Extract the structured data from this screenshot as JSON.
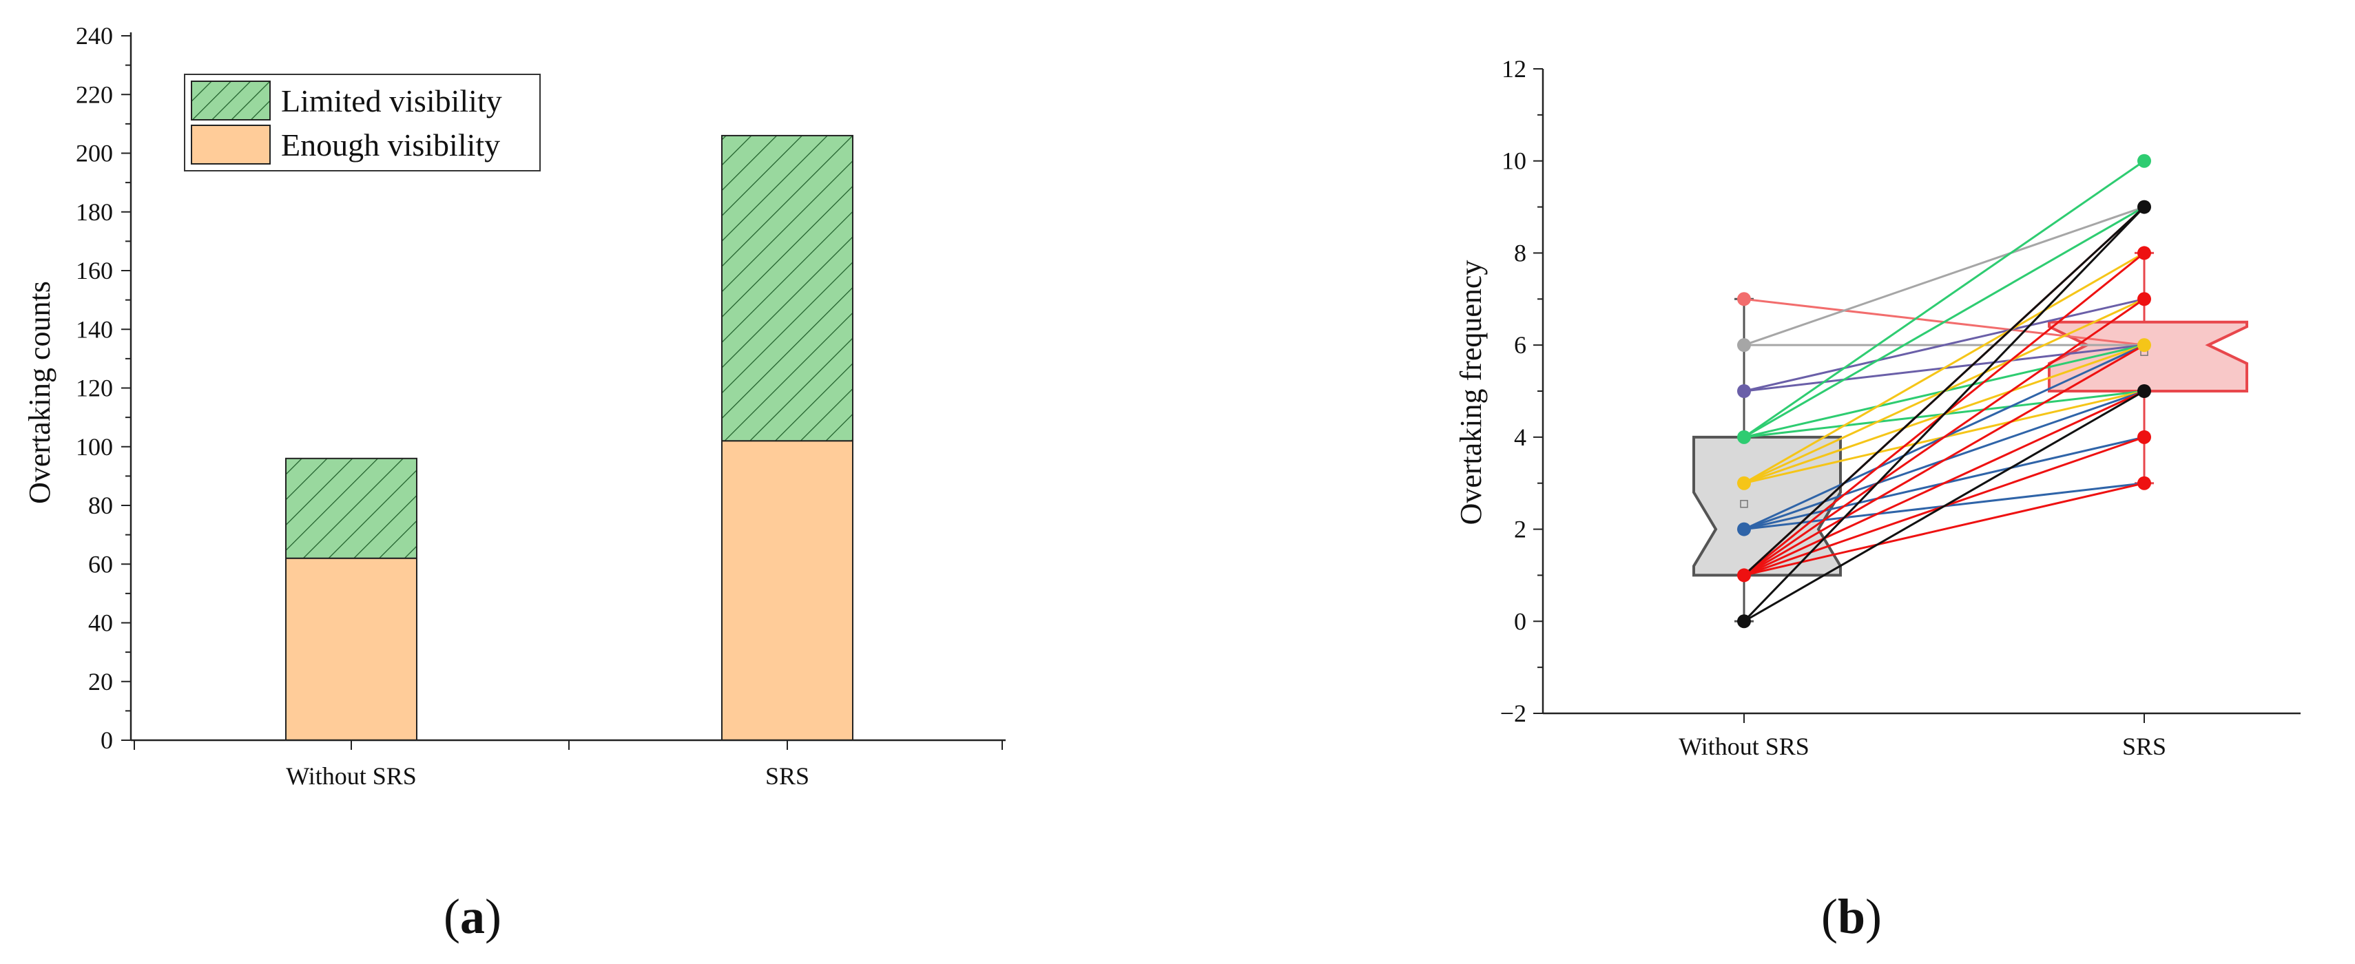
{
  "chart_data": [
    {
      "panel": "(a)",
      "type": "bar",
      "stacked": true,
      "categories": [
        "Without SRS",
        "SRS"
      ],
      "series": [
        {
          "name": "Enough visibility",
          "values": [
            62,
            102
          ],
          "color": "#ffcc99"
        },
        {
          "name": "Limited visibility",
          "values": [
            34,
            104
          ],
          "color": "#99d89e",
          "hatch": true
        }
      ],
      "xlabel": "",
      "ylabel": "Overtaking counts",
      "ylim": [
        0,
        240
      ],
      "yticks": [
        0,
        20,
        40,
        60,
        80,
        100,
        120,
        140,
        160,
        180,
        200,
        220,
        240
      ],
      "legend": "top-left",
      "grid": false
    },
    {
      "panel": "(b)",
      "type": "box",
      "categories": [
        "Without SRS",
        "SRS"
      ],
      "ylabel": "Overtaking frequency",
      "ylim": [
        -2,
        12
      ],
      "yticks": [
        -2,
        0,
        2,
        4,
        6,
        8,
        10,
        12
      ],
      "grid": false,
      "boxes": [
        {
          "category": "Without SRS",
          "q1": 1,
          "median": 2,
          "q3": 4,
          "notch_low": 1.2,
          "notch_high": 2.8,
          "whisker_low": 0,
          "whisker_high": 7,
          "mean": 2.55,
          "fill": "#d9d9d9",
          "stroke": "#555555"
        },
        {
          "category": "SRS",
          "q1": 5,
          "median": 6,
          "q3": 6.5,
          "notch_low": 5.6,
          "notch_high": 6.4,
          "whisker_low": 3,
          "whisker_high": 8,
          "mean": 5.85,
          "fill": "#f8c8c8",
          "stroke": "#e8474c"
        }
      ],
      "paired_lines": [
        {
          "from": 7,
          "to": 6,
          "color": "#f26d6d"
        },
        {
          "from": 6,
          "to": 9,
          "color": "#a6a6a6"
        },
        {
          "from": 6,
          "to": 6,
          "color": "#a6a6a6"
        },
        {
          "from": 5,
          "to": 7,
          "color": "#6a5fa8"
        },
        {
          "from": 5,
          "to": 6,
          "color": "#6a5fa8"
        },
        {
          "from": 4,
          "to": 10,
          "color": "#2ecc71"
        },
        {
          "from": 4,
          "to": 9,
          "color": "#2ecc71"
        },
        {
          "from": 4,
          "to": 6,
          "color": "#2ecc71"
        },
        {
          "from": 4,
          "to": 5,
          "color": "#2ecc71"
        },
        {
          "from": 3,
          "to": 8,
          "color": "#f5c518"
        },
        {
          "from": 3,
          "to": 7,
          "color": "#f5c518"
        },
        {
          "from": 3,
          "to": 6,
          "color": "#f5c518"
        },
        {
          "from": 3,
          "to": 5,
          "color": "#f5c518"
        },
        {
          "from": 2,
          "to": 6,
          "color": "#2f64a8"
        },
        {
          "from": 2,
          "to": 5,
          "color": "#2f64a8"
        },
        {
          "from": 2,
          "to": 4,
          "color": "#2f64a8"
        },
        {
          "from": 2,
          "to": 3,
          "color": "#2f64a8"
        },
        {
          "from": 1,
          "to": 8,
          "color": "#ee1111"
        },
        {
          "from": 1,
          "to": 7,
          "color": "#ee1111"
        },
        {
          "from": 1,
          "to": 6,
          "color": "#ee1111"
        },
        {
          "from": 1,
          "to": 5,
          "color": "#ee1111"
        },
        {
          "from": 1,
          "to": 4,
          "color": "#ee1111"
        },
        {
          "from": 1,
          "to": 3,
          "color": "#ee1111"
        },
        {
          "from": 1,
          "to": 9,
          "color": "#ee1111"
        },
        {
          "from": 1,
          "to": 9,
          "color": "#111111"
        },
        {
          "from": 0,
          "to": 9,
          "color": "#111111"
        },
        {
          "from": 0,
          "to": 5,
          "color": "#111111"
        }
      ],
      "points": [
        {
          "category": "Without SRS",
          "y": 7,
          "color": "#f26d6d"
        },
        {
          "category": "Without SRS",
          "y": 6,
          "color": "#a6a6a6"
        },
        {
          "category": "Without SRS",
          "y": 5,
          "color": "#6a5fa8"
        },
        {
          "category": "Without SRS",
          "y": 4,
          "color": "#2ecc71"
        },
        {
          "category": "Without SRS",
          "y": 3,
          "color": "#f5c518"
        },
        {
          "category": "Without SRS",
          "y": 2,
          "color": "#2f64a8"
        },
        {
          "category": "Without SRS",
          "y": 1,
          "color": "#ee1111"
        },
        {
          "category": "Without SRS",
          "y": 0,
          "color": "#111111"
        },
        {
          "category": "SRS",
          "y": 10,
          "color": "#2ecc71"
        },
        {
          "category": "SRS",
          "y": 9,
          "color": "#111111"
        },
        {
          "category": "SRS",
          "y": 8,
          "color": "#ee1111"
        },
        {
          "category": "SRS",
          "y": 7,
          "color": "#ee1111"
        },
        {
          "category": "SRS",
          "y": 6,
          "color": "#f5c518"
        },
        {
          "category": "SRS",
          "y": 5,
          "color": "#111111"
        },
        {
          "category": "SRS",
          "y": 4,
          "color": "#ee1111"
        },
        {
          "category": "SRS",
          "y": 3,
          "color": "#ee1111"
        }
      ]
    }
  ],
  "labels": {
    "panel_a": {
      "open": "(",
      "letter": "a",
      "close": ")"
    },
    "panel_b": {
      "open": "(",
      "letter": "b",
      "close": ")"
    }
  }
}
